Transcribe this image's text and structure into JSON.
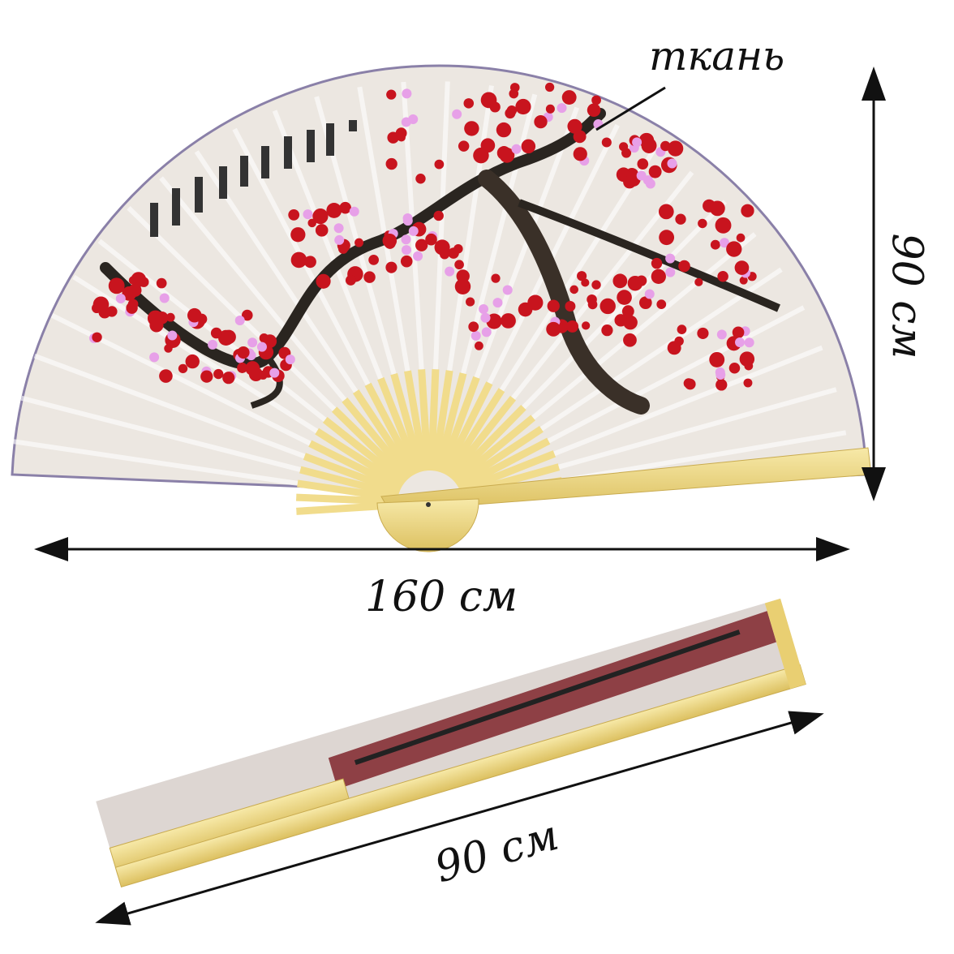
{
  "labels": {
    "material": "ткань",
    "width": "160 см",
    "height": "90 см",
    "folded_length": "90 см"
  },
  "colors": {
    "fabric": "#ece6df",
    "bamboo": "#f1dc8c",
    "blossom": "#c8141e",
    "bud": "#e7a0e8",
    "branch": "#2a2520"
  }
}
